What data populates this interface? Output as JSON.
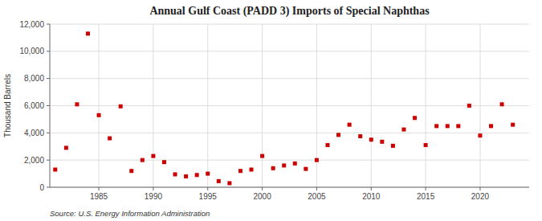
{
  "chart_data": {
    "type": "scatter",
    "title": "Annual Gulf Coast (PADD 3) Imports of Special Naphthas",
    "ylabel": "Thousand Barrels",
    "source": "Source: U.S. Energy Information Administration",
    "x": [
      1981,
      1982,
      1983,
      1984,
      1985,
      1986,
      1987,
      1988,
      1989,
      1990,
      1991,
      1992,
      1993,
      1994,
      1995,
      1996,
      1997,
      1998,
      1999,
      2000,
      2001,
      2002,
      2003,
      2004,
      2005,
      2006,
      2007,
      2008,
      2009,
      2010,
      2011,
      2012,
      2013,
      2014,
      2015,
      2016,
      2017,
      2018,
      2019,
      2020,
      2021,
      2022,
      2023
    ],
    "values": [
      1300,
      2900,
      6100,
      11300,
      5300,
      3600,
      5950,
      1200,
      2000,
      2300,
      1850,
      950,
      800,
      900,
      1000,
      450,
      300,
      1200,
      1300,
      2300,
      1400,
      1600,
      1750,
      1350,
      2000,
      3100,
      3850,
      4600,
      3750,
      3500,
      3350,
      3050,
      4250,
      5100,
      3100,
      4500,
      4500,
      4500,
      6000,
      3800,
      4500,
      6100,
      4600
    ],
    "color": "#cc0000",
    "marker": "square",
    "xlim": [
      1980.5,
      2024.5
    ],
    "xticks": [
      1985,
      1990,
      1995,
      2000,
      2005,
      2010,
      2015,
      2020
    ],
    "ylim": [
      0,
      12000
    ],
    "yticks": [
      0,
      {
        "value": 2000,
        "label": "2,000"
      },
      {
        "value": 4000,
        "label": "4,000"
      },
      {
        "value": 6000,
        "label": "6,000"
      },
      {
        "value": 8000,
        "label": "8,000"
      },
      {
        "value": 10000,
        "label": "10,000"
      },
      {
        "value": 12000,
        "label": "12,000"
      }
    ],
    "grid": true
  }
}
